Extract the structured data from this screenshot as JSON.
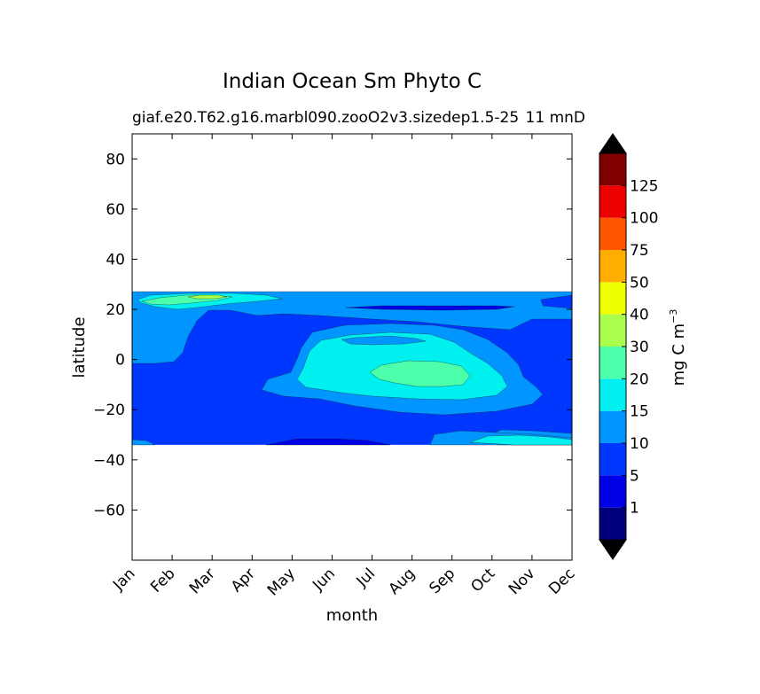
{
  "chart_data": {
    "type": "heatmap",
    "subtype": "filled-contour",
    "title": "Indian Ocean Sm Phyto C",
    "subtitle_left": "giaf.e20.T62.g16.marbl090.zooO2v3.sizedep1.5-25",
    "subtitle_right": "11 mnD",
    "xlabel": "month",
    "ylabel": "latitude",
    "x_ticks": [
      "Jan",
      "Feb",
      "Mar",
      "Apr",
      "May",
      "Jun",
      "Jul",
      "Aug",
      "Sep",
      "Oct",
      "Nov",
      "Dec"
    ],
    "y_ticks": [
      "80",
      "60",
      "40",
      "20",
      "0",
      "−20",
      "−40",
      "−60"
    ],
    "ylim": [
      -80,
      90
    ],
    "data_lat_range": [
      -34,
      27
    ],
    "colorbar": {
      "label": "mg C m",
      "label_sup": "−3",
      "extend": "both",
      "levels": [
        0,
        1,
        5,
        10,
        15,
        20,
        30,
        40,
        50,
        75,
        100,
        125,
        150
      ],
      "tick_labels": [
        "1",
        "5",
        "10",
        "15",
        "20",
        "30",
        "40",
        "50",
        "75",
        "100",
        "125"
      ],
      "under_color": "#000000",
      "over_color": "#000000",
      "colors": [
        "#00007f",
        "#0000e6",
        "#0037ff",
        "#0095ff",
        "#00f0f0",
        "#4dffaa",
        "#aaff4d",
        "#eeff00",
        "#ffae00",
        "#ff5500",
        "#ee0000",
        "#800000"
      ]
    },
    "regions": [
      {
        "feature": "background",
        "value": "5-10",
        "months": "Jan-Dec",
        "lat": [
          -34,
          27
        ]
      },
      {
        "feature": "northern band",
        "value": "10-15",
        "months": "Jan-May",
        "lat": [
          0,
          27
        ]
      },
      {
        "feature": "northern band peak",
        "value": "20-40",
        "months": "Jan-Mar",
        "lat": [
          22,
          27
        ]
      },
      {
        "feature": "summer bloom",
        "value": "10-15",
        "months": "May-Nov",
        "lat": [
          -21,
          14
        ]
      },
      {
        "feature": "summer bloom core",
        "value": "15-20",
        "months": "Jun-Oct",
        "lat": [
          -15,
          11
        ]
      },
      {
        "feature": "summer bloom peak",
        "value": "20-30",
        "months": "Jul-Sep",
        "lat": [
          -11,
          0
        ]
      },
      {
        "feature": "southern band",
        "value": "10-20",
        "months": "Aug-Dec",
        "lat": [
          -34,
          -27
        ]
      },
      {
        "feature": "low minimum",
        "value": "1-5",
        "months": "Jun-Jul",
        "lat": [
          -34,
          -32
        ]
      }
    ]
  }
}
